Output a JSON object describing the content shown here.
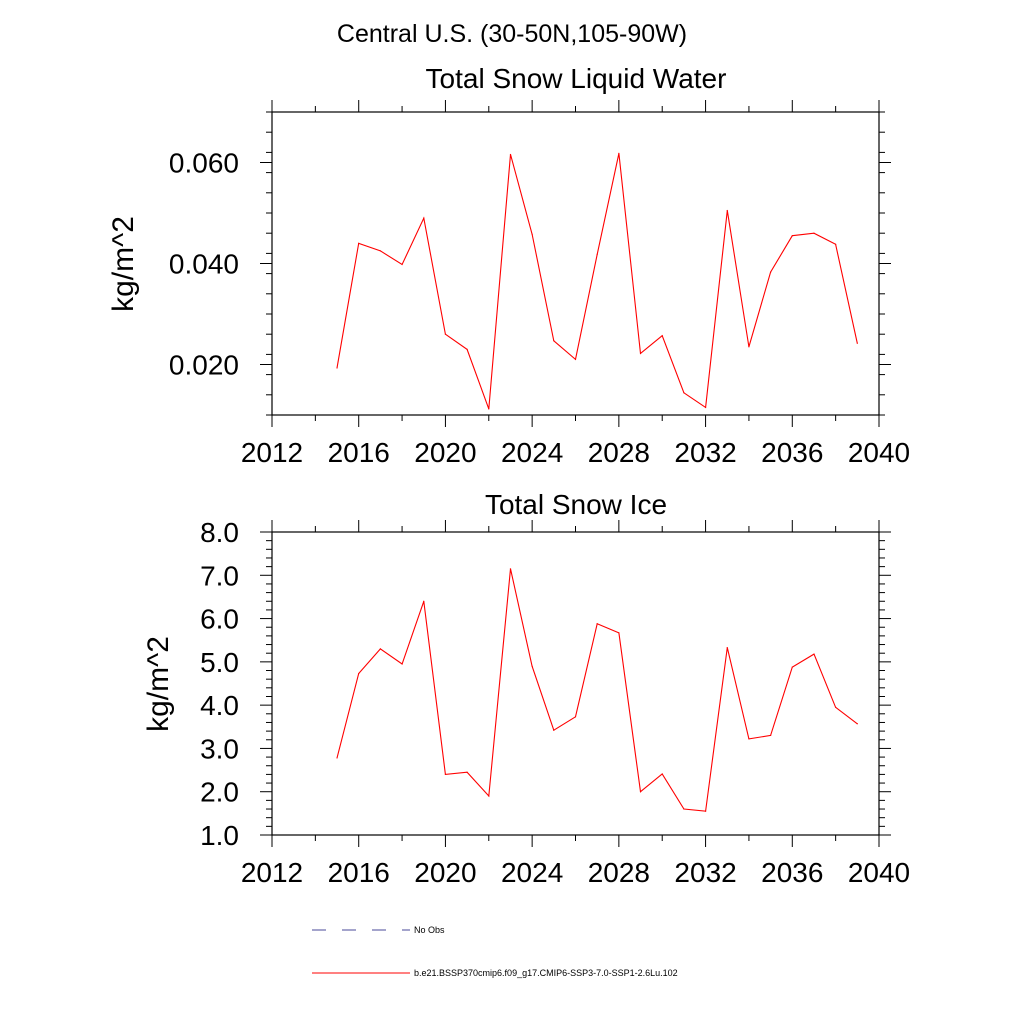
{
  "page": {
    "super_title": "Central U.S. (30-50N,105-90W)"
  },
  "chart_data": [
    {
      "type": "line",
      "title": "Total Snow Liquid Water",
      "xlabel": "",
      "ylabel": "kg/m^2",
      "xlim": [
        2012,
        2040
      ],
      "ylim": [
        0.01,
        0.07
      ],
      "xticks": [
        2012,
        2016,
        2020,
        2024,
        2028,
        2032,
        2036,
        2040
      ],
      "xtick_labels": [
        "2012",
        "2016",
        "2020",
        "2024",
        "2028",
        "2032",
        "2036",
        "2040"
      ],
      "yticks": [
        0.02,
        0.04,
        0.06
      ],
      "ytick_labels": [
        "0.020",
        "0.040",
        "0.060"
      ],
      "grid": false,
      "series": [
        {
          "color": "#ff0000",
          "x": [
            2015,
            2016,
            2017,
            2018,
            2019,
            2020,
            2021,
            2022,
            2023,
            2024,
            2025,
            2026,
            2027,
            2028,
            2029,
            2030,
            2031,
            2032,
            2033,
            2034,
            2035,
            2036,
            2037,
            2038,
            2039
          ],
          "values": [
            0.0193,
            0.044,
            0.0425,
            0.0398,
            0.049,
            0.026,
            0.023,
            0.0112,
            0.0616,
            0.0458,
            0.0247,
            0.021,
            0.0418,
            0.0618,
            0.0222,
            0.0257,
            0.0144,
            0.0115,
            0.0505,
            0.0235,
            0.0383,
            0.0455,
            0.046,
            0.0438,
            0.0242
          ]
        }
      ]
    },
    {
      "type": "line",
      "title": "Total Snow Ice",
      "xlabel": "",
      "ylabel": "kg/m^2",
      "xlim": [
        2012,
        2040
      ],
      "ylim": [
        1.0,
        8.0
      ],
      "xticks": [
        2012,
        2016,
        2020,
        2024,
        2028,
        2032,
        2036,
        2040
      ],
      "xtick_labels": [
        "2012",
        "2016",
        "2020",
        "2024",
        "2028",
        "2032",
        "2036",
        "2040"
      ],
      "yticks": [
        1.0,
        2.0,
        3.0,
        4.0,
        5.0,
        6.0,
        7.0,
        8.0
      ],
      "ytick_labels": [
        "1.0",
        "2.0",
        "3.0",
        "4.0",
        "5.0",
        "6.0",
        "7.0",
        "8.0"
      ],
      "grid": false,
      "series": [
        {
          "color": "#ff0000",
          "x": [
            2015,
            2016,
            2017,
            2018,
            2019,
            2020,
            2021,
            2022,
            2023,
            2024,
            2025,
            2026,
            2027,
            2028,
            2029,
            2030,
            2031,
            2032,
            2033,
            2034,
            2035,
            2036,
            2037,
            2038,
            2039
          ],
          "values": [
            2.78,
            4.73,
            5.3,
            4.95,
            6.4,
            2.4,
            2.45,
            1.9,
            7.15,
            4.9,
            3.42,
            3.73,
            5.88,
            5.67,
            2.0,
            2.41,
            1.6,
            1.55,
            5.33,
            3.22,
            3.3,
            4.88,
            5.18,
            3.95,
            3.57
          ]
        }
      ]
    }
  ],
  "legend": {
    "placement": "bottom-left",
    "entries": [
      {
        "label": "No Obs",
        "color": "#4a4a9a",
        "style": "dashed"
      },
      {
        "label": "b.e21.BSSP370cmip6.f09_g17.CMIP6-SSP3-7.0-SSP1-2.6Lu.102",
        "color": "#ff0000",
        "style": "solid"
      }
    ]
  }
}
